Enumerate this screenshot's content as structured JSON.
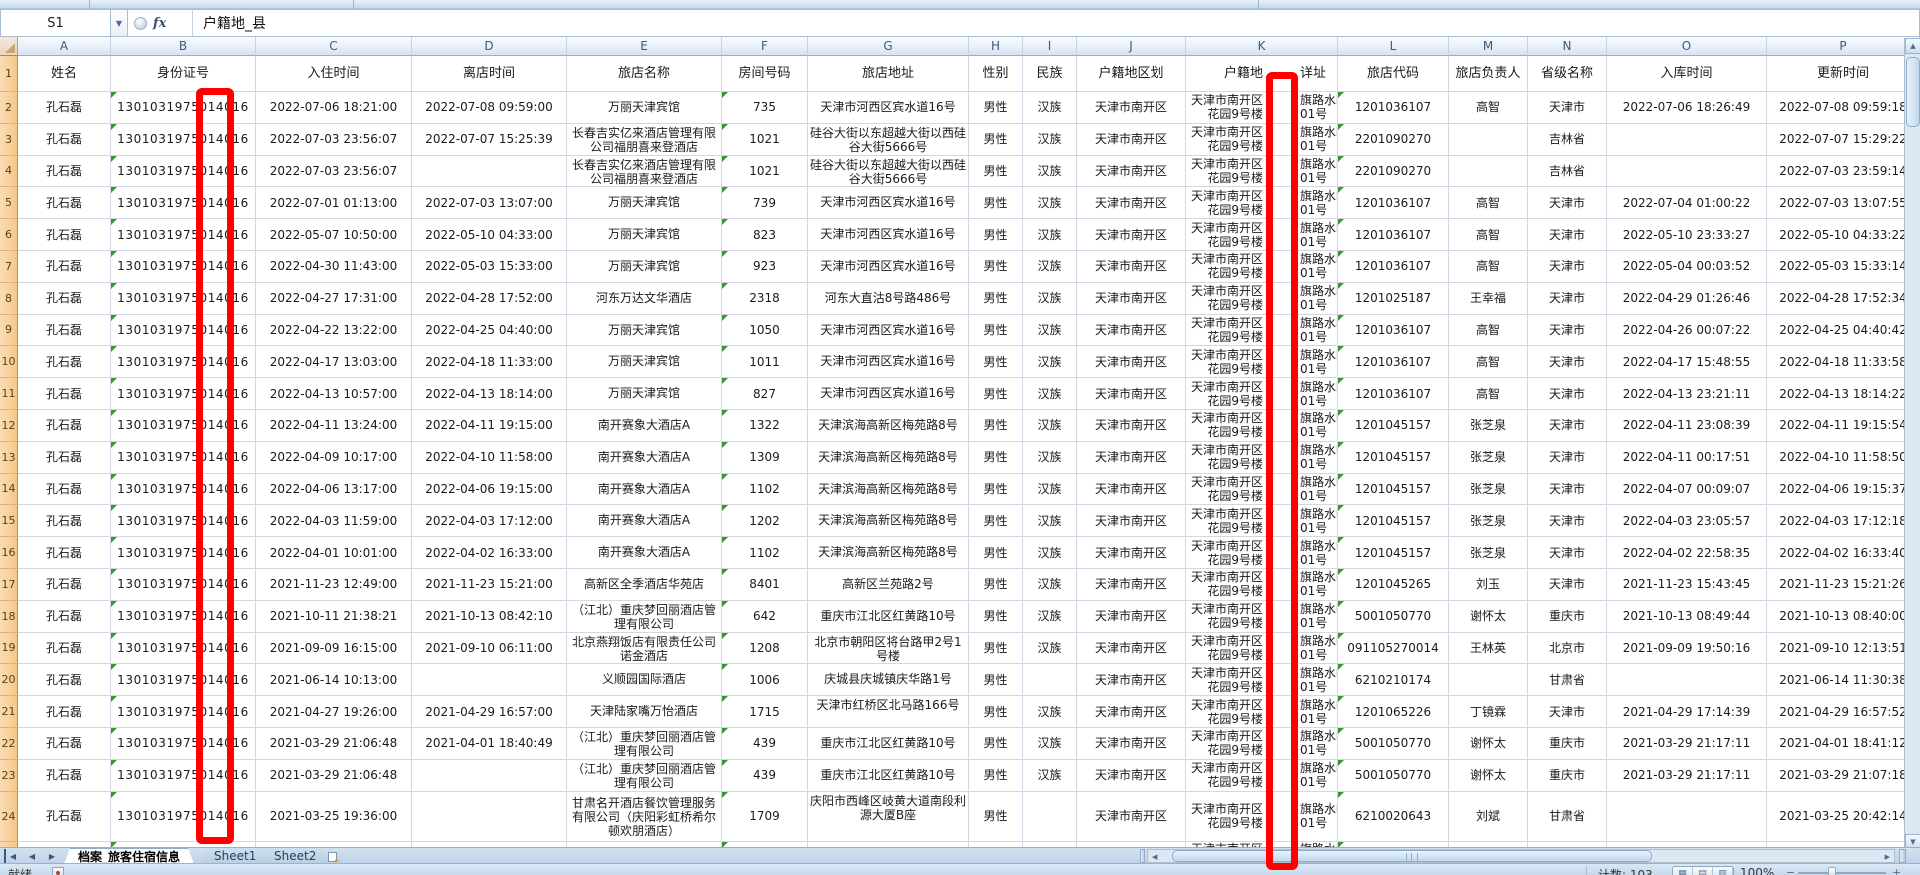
{
  "formula_bar": {
    "name_box": "S1",
    "fx_label": "fx",
    "formula_text": "户籍地_县"
  },
  "grid": {
    "column_letters": [
      "A",
      "B",
      "C",
      "D",
      "E",
      "F",
      "G",
      "H",
      "I",
      "J",
      "K",
      "L",
      "M",
      "N",
      "O",
      "P"
    ],
    "header_row": {
      "name": "姓名",
      "id": "身份证号",
      "checkin": "入住时间",
      "checkout": "离店时间",
      "hotel": "旅店名称",
      "room": "房间号码",
      "hotel_address": "旅店地址",
      "gender": "性别",
      "ethnicity": "民族",
      "region": "户籍地区划",
      "k_pre": "户籍地",
      "k_post": "详址",
      "hotel_code": "旅店代码",
      "manager": "旅店负责人",
      "province": "省级名称",
      "entry_time": "入库时间",
      "update_time": "更新时间"
    },
    "id_parts": [
      "13010319750",
      "14",
      "016"
    ],
    "k_address": {
      "line1_pre": "天津市南开区",
      "line1_post": "旗路水畔",
      "line2_pre": "花园9号楼",
      "line2_post": "01号"
    },
    "rows": [
      {
        "row": 2,
        "name": "孔石磊",
        "checkin": "2022-07-06 18:21:00",
        "checkout": "2022-07-08 09:59:00",
        "hotel": "万丽天津宾馆",
        "room": "735",
        "hotel_address": "天津市河西区宾水道16号",
        "gender": "男性",
        "ethnicity": "汉族",
        "region": "天津市南开区",
        "hotel_code": "1201036107",
        "manager": "高智",
        "province": "天津市",
        "entry_time": "2022-07-06 18:26:49",
        "update_time": "2022-07-08 09:59:18"
      },
      {
        "row": 3,
        "name": "孔石磊",
        "checkin": "2022-07-03 23:56:07",
        "checkout": "2022-07-07 15:25:39",
        "hotel": "长春吉实亿来酒店管理有限公司福朋喜来登酒店",
        "room": "1021",
        "hotel_address": "硅谷大街以东超越大街以西硅谷大街5666号",
        "gender": "男性",
        "ethnicity": "汉族",
        "region": "天津市南开区",
        "hotel_code": "2201090270",
        "manager": "",
        "province": "吉林省",
        "entry_time": "",
        "update_time": "2022-07-07 15:29:22"
      },
      {
        "row": 4,
        "name": "孔石磊",
        "checkin": "2022-07-03 23:56:07",
        "checkout": "",
        "hotel": "长春吉实亿来酒店管理有限公司福朋喜来登酒店",
        "room": "1021",
        "hotel_address": "硅谷大街以东超越大街以西硅谷大街5666号",
        "gender": "男性",
        "ethnicity": "汉族",
        "region": "天津市南开区",
        "hotel_code": "2201090270",
        "manager": "",
        "province": "吉林省",
        "entry_time": "",
        "update_time": "2022-07-03 23:59:14"
      },
      {
        "row": 5,
        "name": "孔石磊",
        "checkin": "2022-07-01 01:13:00",
        "checkout": "2022-07-03 13:07:00",
        "hotel": "万丽天津宾馆",
        "room": "739",
        "hotel_address": "天津市河西区宾水道16号",
        "gender": "男性",
        "ethnicity": "汉族",
        "region": "天津市南开区",
        "hotel_code": "1201036107",
        "manager": "高智",
        "province": "天津市",
        "entry_time": "2022-07-04 01:00:22",
        "update_time": "2022-07-03 13:07:55"
      },
      {
        "row": 6,
        "name": "孔石磊",
        "checkin": "2022-05-07 10:50:00",
        "checkout": "2022-05-10 04:33:00",
        "hotel": "万丽天津宾馆",
        "room": "823",
        "hotel_address": "天津市河西区宾水道16号",
        "gender": "男性",
        "ethnicity": "汉族",
        "region": "天津市南开区",
        "hotel_code": "1201036107",
        "manager": "高智",
        "province": "天津市",
        "entry_time": "2022-05-10 23:33:27",
        "update_time": "2022-05-10 04:33:22"
      },
      {
        "row": 7,
        "name": "孔石磊",
        "checkin": "2022-04-30 11:43:00",
        "checkout": "2022-05-03 15:33:00",
        "hotel": "万丽天津宾馆",
        "room": "923",
        "hotel_address": "天津市河西区宾水道16号",
        "gender": "男性",
        "ethnicity": "汉族",
        "region": "天津市南开区",
        "hotel_code": "1201036107",
        "manager": "高智",
        "province": "天津市",
        "entry_time": "2022-05-04 00:03:52",
        "update_time": "2022-05-03 15:33:14"
      },
      {
        "row": 8,
        "name": "孔石磊",
        "checkin": "2022-04-27 17:31:00",
        "checkout": "2022-04-28 17:52:00",
        "hotel": "河东万达文华酒店",
        "room": "2318",
        "hotel_address": "河东大直沽8号路486号",
        "gender": "男性",
        "ethnicity": "汉族",
        "region": "天津市南开区",
        "hotel_code": "1201025187",
        "manager": "王幸福",
        "province": "天津市",
        "entry_time": "2022-04-29 01:26:46",
        "update_time": "2022-04-28 17:52:34"
      },
      {
        "row": 9,
        "name": "孔石磊",
        "checkin": "2022-04-22 13:22:00",
        "checkout": "2022-04-25 04:40:00",
        "hotel": "万丽天津宾馆",
        "room": "1050",
        "hotel_address": "天津市河西区宾水道16号",
        "gender": "男性",
        "ethnicity": "汉族",
        "region": "天津市南开区",
        "hotel_code": "1201036107",
        "manager": "高智",
        "province": "天津市",
        "entry_time": "2022-04-26 00:07:22",
        "update_time": "2022-04-25 04:40:42"
      },
      {
        "row": 10,
        "name": "孔石磊",
        "checkin": "2022-04-17 13:03:00",
        "checkout": "2022-04-18 11:33:00",
        "hotel": "万丽天津宾馆",
        "room": "1011",
        "hotel_address": "天津市河西区宾水道16号",
        "gender": "男性",
        "ethnicity": "汉族",
        "region": "天津市南开区",
        "hotel_code": "1201036107",
        "manager": "高智",
        "province": "天津市",
        "entry_time": "2022-04-17 15:48:55",
        "update_time": "2022-04-18 11:33:58"
      },
      {
        "row": 11,
        "name": "孔石磊",
        "checkin": "2022-04-13 10:57:00",
        "checkout": "2022-04-13 18:14:00",
        "hotel": "万丽天津宾馆",
        "room": "827",
        "hotel_address": "天津市河西区宾水道16号",
        "gender": "男性",
        "ethnicity": "汉族",
        "region": "天津市南开区",
        "hotel_code": "1201036107",
        "manager": "高智",
        "province": "天津市",
        "entry_time": "2022-04-13 23:21:11",
        "update_time": "2022-04-13 18:14:22"
      },
      {
        "row": 12,
        "name": "孔石磊",
        "checkin": "2022-04-11 13:24:00",
        "checkout": "2022-04-11 19:15:00",
        "hotel": "南开赛象大酒店A",
        "room": "1322",
        "hotel_address": "天津滨海高新区梅苑路8号",
        "gender": "男性",
        "ethnicity": "汉族",
        "region": "天津市南开区",
        "hotel_code": "1201045157",
        "manager": "张芝泉",
        "province": "天津市",
        "entry_time": "2022-04-11 23:08:39",
        "update_time": "2022-04-11 19:15:54"
      },
      {
        "row": 13,
        "name": "孔石磊",
        "checkin": "2022-04-09 10:17:00",
        "checkout": "2022-04-10 11:58:00",
        "hotel": "南开赛象大酒店A",
        "room": "1309",
        "hotel_address": "天津滨海高新区梅苑路8号",
        "gender": "男性",
        "ethnicity": "汉族",
        "region": "天津市南开区",
        "hotel_code": "1201045157",
        "manager": "张芝泉",
        "province": "天津市",
        "entry_time": "2022-04-11 00:17:51",
        "update_time": "2022-04-10 11:58:50"
      },
      {
        "row": 14,
        "name": "孔石磊",
        "checkin": "2022-04-06 13:17:00",
        "checkout": "2022-04-06 19:15:00",
        "hotel": "南开赛象大酒店A",
        "room": "1102",
        "hotel_address": "天津滨海高新区梅苑路8号",
        "gender": "男性",
        "ethnicity": "汉族",
        "region": "天津市南开区",
        "hotel_code": "1201045157",
        "manager": "张芝泉",
        "province": "天津市",
        "entry_time": "2022-04-07 00:09:07",
        "update_time": "2022-04-06 19:15:37"
      },
      {
        "row": 15,
        "name": "孔石磊",
        "checkin": "2022-04-03 11:59:00",
        "checkout": "2022-04-03 17:12:00",
        "hotel": "南开赛象大酒店A",
        "room": "1202",
        "hotel_address": "天津滨海高新区梅苑路8号",
        "gender": "男性",
        "ethnicity": "汉族",
        "region": "天津市南开区",
        "hotel_code": "1201045157",
        "manager": "张芝泉",
        "province": "天津市",
        "entry_time": "2022-04-03 23:05:57",
        "update_time": "2022-04-03 17:12:18"
      },
      {
        "row": 16,
        "name": "孔石磊",
        "checkin": "2022-04-01 10:01:00",
        "checkout": "2022-04-02 16:33:00",
        "hotel": "南开赛象大酒店A",
        "room": "1102",
        "hotel_address": "天津滨海高新区梅苑路8号",
        "gender": "男性",
        "ethnicity": "汉族",
        "region": "天津市南开区",
        "hotel_code": "1201045157",
        "manager": "张芝泉",
        "province": "天津市",
        "entry_time": "2022-04-02 22:58:35",
        "update_time": "2022-04-02 16:33:40"
      },
      {
        "row": 17,
        "name": "孔石磊",
        "checkin": "2021-11-23 12:49:00",
        "checkout": "2021-11-23 15:21:00",
        "hotel": "高新区全季酒店华苑店",
        "room": "8401",
        "hotel_address": "高新区兰苑路2号",
        "gender": "男性",
        "ethnicity": "汉族",
        "region": "天津市南开区",
        "hotel_code": "1201045265",
        "manager": "刘玉",
        "province": "天津市",
        "entry_time": "2021-11-23 15:43:45",
        "update_time": "2021-11-23 15:21:26"
      },
      {
        "row": 18,
        "name": "孔石磊",
        "checkin": "2021-10-11 21:38:21",
        "checkout": "2021-10-13 08:42:10",
        "hotel": "（江北）重庆梦回丽酒店管理有限公司",
        "room": "642",
        "hotel_address": "重庆市江北区红黄路10号",
        "gender": "男性",
        "ethnicity": "汉族",
        "region": "天津市南开区",
        "hotel_code": "5001050770",
        "manager": "谢怀太",
        "province": "重庆市",
        "entry_time": "2021-10-13 08:49:44",
        "update_time": "2021-10-13 08:40:00"
      },
      {
        "row": 19,
        "name": "孔石磊",
        "checkin": "2021-09-09 16:15:00",
        "checkout": "2021-09-10 06:11:00",
        "hotel": "北京燕翔饭店有限责任公司诺金酒店",
        "room": "1208",
        "hotel_address": "北京市朝阳区将台路甲2号1号楼",
        "gender": "男性",
        "ethnicity": "汉族",
        "region": "天津市南开区",
        "hotel_code": "091105270014",
        "manager": "王林英",
        "province": "北京市",
        "entry_time": "2021-09-09 19:50:16",
        "update_time": "2021-09-10 12:13:51"
      },
      {
        "row": 20,
        "name": "孔石磊",
        "checkin": "2021-06-14 10:13:00",
        "checkout": "",
        "hotel": "义顺园国际酒店",
        "room": "1006",
        "hotel_address": "庆城县庆城镇庆华路1号",
        "gender": "男性",
        "ethnicity": "",
        "region": "天津市南开区",
        "hotel_code": "6210210174",
        "manager": "",
        "province": "甘肃省",
        "entry_time": "",
        "update_time": "2021-06-14 11:30:38"
      },
      {
        "row": 21,
        "name": "孔石磊",
        "checkin": "2021-04-27 19:26:00",
        "checkout": "2021-04-29 16:57:00",
        "hotel": "天津陆家嘴万怡酒店",
        "room": "1715",
        "hotel_address": "天津市红桥区北马路166号",
        "gender": "男性",
        "ethnicity": "汉族",
        "region": "天津市南开区",
        "hotel_code": "1201065226",
        "manager": "丁镜霖",
        "province": "天津市",
        "entry_time": "2021-04-29 17:14:39",
        "update_time": "2021-04-29 16:57:52"
      },
      {
        "row": 22,
        "name": "孔石磊",
        "checkin": "2021-03-29 21:06:48",
        "checkout": "2021-04-01 18:40:49",
        "hotel": "（江北）重庆梦回丽酒店管理有限公司",
        "room": "439",
        "hotel_address": "重庆市江北区红黄路10号",
        "gender": "男性",
        "ethnicity": "汉族",
        "region": "天津市南开区",
        "hotel_code": "5001050770",
        "manager": "谢怀太",
        "province": "重庆市",
        "entry_time": "2021-03-29 21:17:11",
        "update_time": "2021-04-01 18:41:12"
      },
      {
        "row": 23,
        "name": "孔石磊",
        "checkin": "2021-03-29 21:06:48",
        "checkout": "",
        "hotel": "（江北）重庆梦回丽酒店管理有限公司",
        "room": "439",
        "hotel_address": "重庆市江北区红黄路10号",
        "gender": "男性",
        "ethnicity": "汉族",
        "region": "天津市南开区",
        "hotel_code": "5001050770",
        "manager": "谢怀太",
        "province": "重庆市",
        "entry_time": "2021-03-29 21:17:11",
        "update_time": "2021-03-29 21:07:18"
      },
      {
        "row": 24,
        "name": "孔石磊",
        "checkin": "2021-03-25 19:36:00",
        "checkout": "",
        "hotel": "甘肃名开酒店餐饮管理服务有限公司（庆阳彩虹桥希尔顿欢朋酒店）",
        "room": "1709",
        "hotel_address": "庆阳市西峰区岐黄大道南段利源大厦B座",
        "gender": "男性",
        "ethnicity": "",
        "region": "天津市南开区",
        "hotel_code": "6210020643",
        "manager": "刘斌",
        "province": "甘肃省",
        "entry_time": "",
        "update_time": "2021-03-25 20:42:14"
      }
    ]
  },
  "sheet_tabs": {
    "active": "档案_旅客住宿信息",
    "others": [
      "Sheet1",
      "Sheet2"
    ]
  },
  "status_bar": {
    "left": "就绪",
    "count": "计数: 103",
    "zoom": "100%",
    "view_buttons": [
      "normal-view",
      "page-layout-view",
      "page-break-view"
    ]
  },
  "annotation": {
    "color": "#fe0000"
  }
}
